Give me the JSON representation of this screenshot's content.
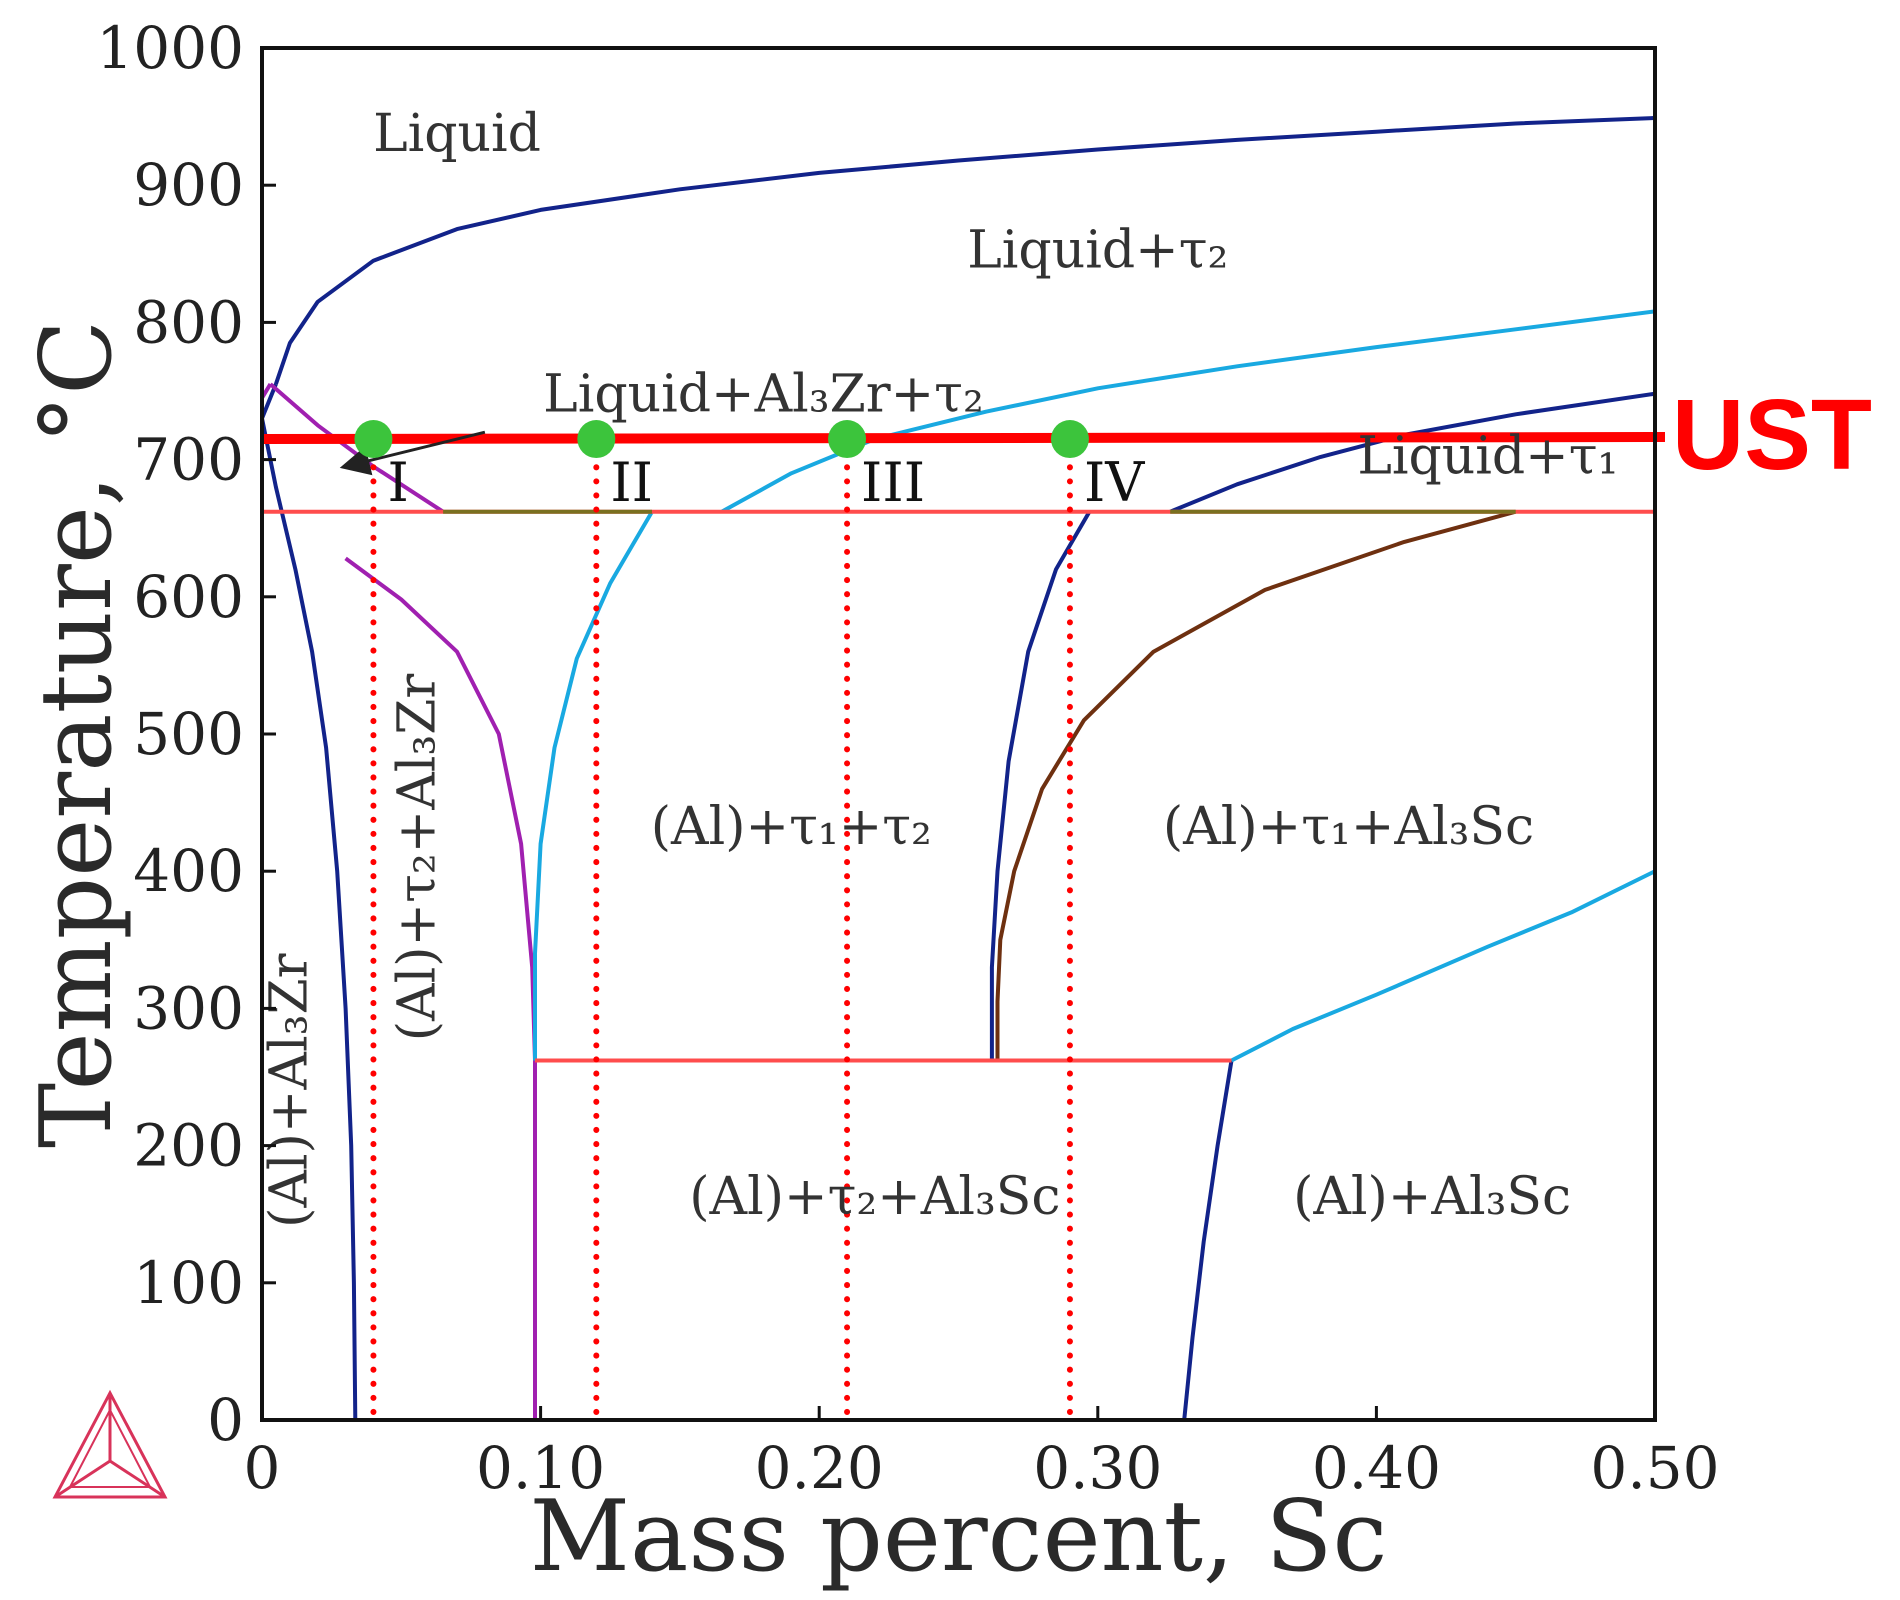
{
  "chart_data": {
    "type": "line",
    "xlabel": "Mass percent, Sc",
    "ylabel": "Temperature, °C",
    "xlim": [
      0,
      0.5
    ],
    "ylim": [
      0,
      1000
    ],
    "x_tick_labels": [
      "0",
      "0.10",
      "0.20",
      "0.30",
      "0.40",
      "0.50"
    ],
    "y_tick_labels": [
      "0",
      "100",
      "200",
      "300",
      "400",
      "500",
      "600",
      "700",
      "800",
      "900",
      "1000"
    ],
    "grid": false,
    "phase_boundaries": [
      {
        "color": "#12238a",
        "points": [
          [
            0.005,
            755
          ],
          [
            0.01,
            785
          ],
          [
            0.02,
            815
          ],
          [
            0.04,
            845
          ],
          [
            0.07,
            868
          ],
          [
            0.1,
            882
          ],
          [
            0.15,
            897
          ],
          [
            0.2,
            909
          ],
          [
            0.25,
            918
          ],
          [
            0.3,
            926
          ],
          [
            0.35,
            933
          ],
          [
            0.4,
            939
          ],
          [
            0.45,
            945
          ],
          [
            0.5,
            949
          ]
        ]
      },
      {
        "color": "#12238a",
        "points": [
          [
            0.005,
            755
          ],
          [
            0.0,
            730
          ],
          [
            0.005,
            680
          ],
          [
            0.012,
            620
          ],
          [
            0.018,
            560
          ],
          [
            0.023,
            490
          ],
          [
            0.027,
            400
          ],
          [
            0.03,
            300
          ],
          [
            0.032,
            200
          ],
          [
            0.033,
            100
          ],
          [
            0.0335,
            0
          ]
        ]
      },
      {
        "color": "#a020b0",
        "points": [
          [
            0.003,
            755
          ],
          [
            0.02,
            725
          ],
          [
            0.04,
            695
          ],
          [
            0.065,
            662
          ]
        ]
      },
      {
        "color": "#a020b0",
        "points": [
          [
            0.0,
            745
          ],
          [
            0.003,
            755
          ]
        ]
      },
      {
        "color": "#a020b0",
        "points": [
          [
            0.03,
            628
          ],
          [
            0.05,
            598
          ],
          [
            0.07,
            560
          ],
          [
            0.085,
            500
          ],
          [
            0.093,
            420
          ],
          [
            0.097,
            330
          ],
          [
            0.098,
            262
          ],
          [
            0.098,
            0
          ]
        ]
      },
      {
        "color": "#19a9e1",
        "points": [
          [
            0.165,
            662
          ],
          [
            0.19,
            690
          ],
          [
            0.22,
            715
          ],
          [
            0.26,
            735
          ],
          [
            0.3,
            752
          ],
          [
            0.35,
            768
          ],
          [
            0.4,
            782
          ],
          [
            0.45,
            795
          ],
          [
            0.5,
            808
          ]
        ]
      },
      {
        "color": "#19a9e1",
        "points": [
          [
            0.14,
            662
          ],
          [
            0.125,
            610
          ],
          [
            0.113,
            555
          ],
          [
            0.105,
            490
          ],
          [
            0.1,
            420
          ],
          [
            0.098,
            340
          ],
          [
            0.098,
            262
          ]
        ]
      },
      {
        "color": "#12238a",
        "points": [
          [
            0.326,
            662
          ],
          [
            0.35,
            682
          ],
          [
            0.38,
            702
          ],
          [
            0.41,
            718
          ],
          [
            0.45,
            733
          ],
          [
            0.5,
            748
          ]
        ]
      },
      {
        "color": "#12238a",
        "points": [
          [
            0.297,
            662
          ],
          [
            0.285,
            620
          ],
          [
            0.275,
            560
          ],
          [
            0.268,
            480
          ],
          [
            0.264,
            400
          ],
          [
            0.262,
            330
          ],
          [
            0.262,
            262
          ]
        ]
      },
      {
        "color": "#6e3010",
        "points": [
          [
            0.45,
            662
          ],
          [
            0.41,
            640
          ],
          [
            0.36,
            605
          ],
          [
            0.32,
            560
          ],
          [
            0.295,
            510
          ],
          [
            0.28,
            460
          ],
          [
            0.27,
            400
          ],
          [
            0.265,
            350
          ],
          [
            0.264,
            305
          ],
          [
            0.264,
            262
          ]
        ]
      },
      {
        "color": "#12238a",
        "points": [
          [
            0.348,
            262
          ],
          [
            0.343,
            200
          ],
          [
            0.338,
            130
          ],
          [
            0.334,
            60
          ],
          [
            0.331,
            0
          ]
        ]
      },
      {
        "color": "#19a9e1",
        "points": [
          [
            0.348,
            262
          ],
          [
            0.37,
            285
          ],
          [
            0.4,
            310
          ],
          [
            0.44,
            345
          ],
          [
            0.47,
            370
          ],
          [
            0.5,
            400
          ]
        ]
      },
      {
        "color": "#ff4d4d",
        "points": [
          [
            0.0,
            662
          ],
          [
            0.5,
            662
          ]
        ]
      },
      {
        "color": "#7a7020",
        "points": [
          [
            0.065,
            662
          ],
          [
            0.14,
            662
          ]
        ]
      },
      {
        "color": "#7a7020",
        "points": [
          [
            0.326,
            662
          ],
          [
            0.45,
            662
          ]
        ]
      },
      {
        "color": "#ff4d4d",
        "points": [
          [
            0.098,
            262
          ],
          [
            0.348,
            262
          ]
        ]
      }
    ],
    "ust_line": {
      "label": "UST",
      "temperature": 715,
      "color": "#ff0000"
    },
    "alloys": [
      {
        "label": "I",
        "x": 0.04,
        "temperature": 715
      },
      {
        "label": "II",
        "x": 0.12,
        "temperature": 715
      },
      {
        "label": "III",
        "x": 0.21,
        "temperature": 715
      },
      {
        "label": "IV",
        "x": 0.29,
        "temperature": 715
      }
    ],
    "point_color": "#3cc43c",
    "alloy_line_color": "#ff0000",
    "regions": [
      {
        "label": "Liquid",
        "x": 0.07,
        "y": 925
      },
      {
        "label": "Liquid+τ₂",
        "x": 0.3,
        "y": 840
      },
      {
        "label": "Liquid+Al₃Zr+τ₂",
        "x": 0.18,
        "y": 735
      },
      {
        "label": "Liquid+τ₁",
        "x": 0.44,
        "y": 690
      },
      {
        "label": "(Al)+τ₁+τ₂",
        "x": 0.19,
        "y": 420
      },
      {
        "label": "(Al)+τ₁+Al₃Sc",
        "x": 0.39,
        "y": 420
      },
      {
        "label": "(Al)+τ₂+Al₃Sc",
        "x": 0.22,
        "y": 150
      },
      {
        "label": "(Al)+Al₃Sc",
        "x": 0.42,
        "y": 150
      }
    ],
    "vertical_regions": [
      {
        "label": "(Al)+Al₃Zr",
        "x": 0.016,
        "y": 240
      },
      {
        "label": "(Al)+τ₂+Al₃Zr",
        "x": 0.062,
        "y": 410
      }
    ],
    "arrow": {
      "from": [
        0.08,
        720
      ],
      "to": [
        0.03,
        695
      ],
      "color": "#222222"
    }
  }
}
